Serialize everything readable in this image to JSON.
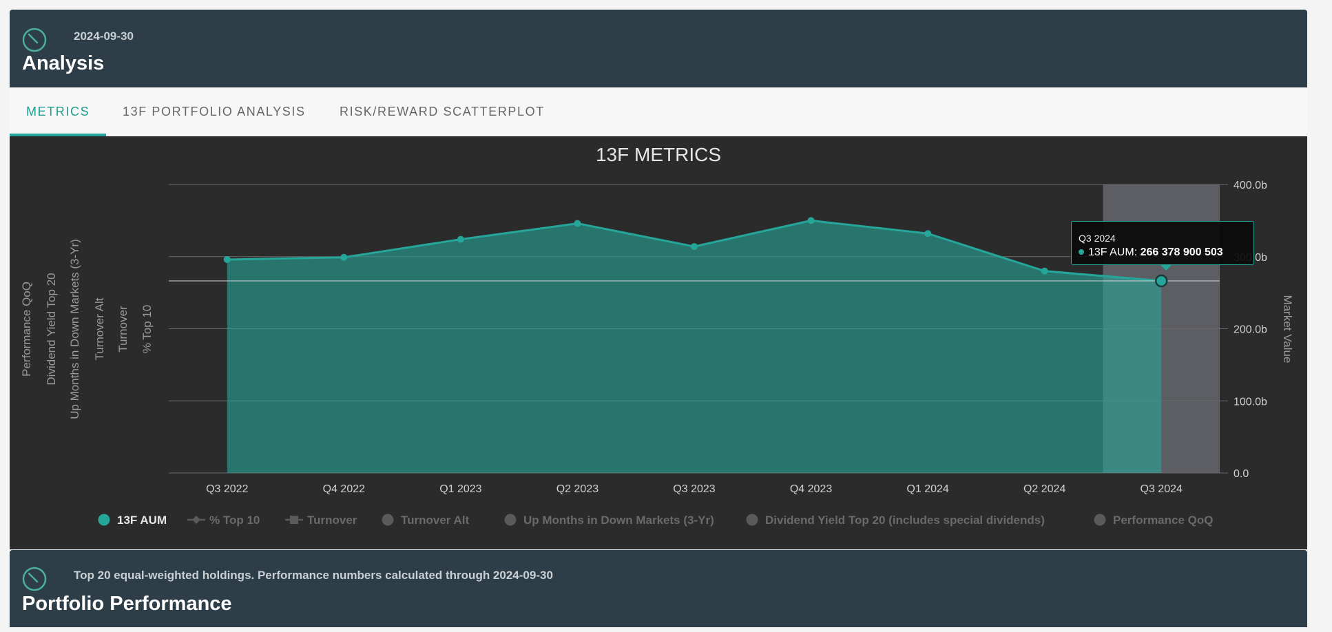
{
  "header": {
    "date": "2024-09-30",
    "title": "Analysis",
    "clock_icon": "clock-icon"
  },
  "tabs": [
    {
      "label": "METRICS",
      "active": true
    },
    {
      "label": "13F PORTFOLIO ANALYSIS",
      "active": false
    },
    {
      "label": "RISK/REWARD SCATTERPLOT",
      "active": false
    }
  ],
  "colors": {
    "accent": "#26a69a",
    "header_bg": "#2e3e48",
    "chart_bg": "#2b2b2b"
  },
  "tooltip": {
    "category": "Q3 2024",
    "series": "13F AUM",
    "value": "266 378 900 503"
  },
  "chart_data": {
    "type": "area",
    "title": "13F METRICS",
    "categories": [
      "Q3 2022",
      "Q4 2022",
      "Q1 2023",
      "Q2 2023",
      "Q3 2023",
      "Q4 2023",
      "Q1 2024",
      "Q2 2024",
      "Q3 2024"
    ],
    "series": [
      {
        "name": "13F AUM",
        "values": [
          296,
          299,
          324,
          346,
          314,
          350,
          332,
          280,
          266.38
        ],
        "axis": "right",
        "visible": true
      }
    ],
    "right_axis": {
      "label": "Market Value",
      "ticks": [
        "0.0",
        "100.0b",
        "200.0b",
        "300.0b",
        "400.0b"
      ],
      "ylim": [
        0,
        400
      ]
    },
    "left_axis_labels": [
      "% Top 10",
      "Turnover",
      "Turnover Alt",
      "Up Months in Down Markets (3-Yr)",
      "Dividend Yield Top 20",
      "Performance QoQ"
    ],
    "highlighted_category": "Q3 2024",
    "grid": true,
    "legend": [
      {
        "label": "13F AUM",
        "marker": "circle",
        "active": true
      },
      {
        "label": "% Top 10",
        "marker": "diamond-line",
        "active": false
      },
      {
        "label": "Turnover",
        "marker": "square-line",
        "active": false
      },
      {
        "label": "Turnover Alt",
        "marker": "circle",
        "active": false
      },
      {
        "label": "Up Months in Down Markets (3-Yr)",
        "marker": "circle",
        "active": false
      },
      {
        "label": "Dividend Yield Top 20 (includes special dividends)",
        "marker": "circle",
        "active": false
      },
      {
        "label": "Performance QoQ",
        "marker": "circle",
        "active": false
      }
    ],
    "legend_position": "bottom"
  },
  "performance": {
    "subtitle": "Top 20 equal-weighted holdings. Performance numbers calculated through 2024-09-30",
    "title": "Portfolio Performance",
    "clock_icon": "clock-icon"
  }
}
